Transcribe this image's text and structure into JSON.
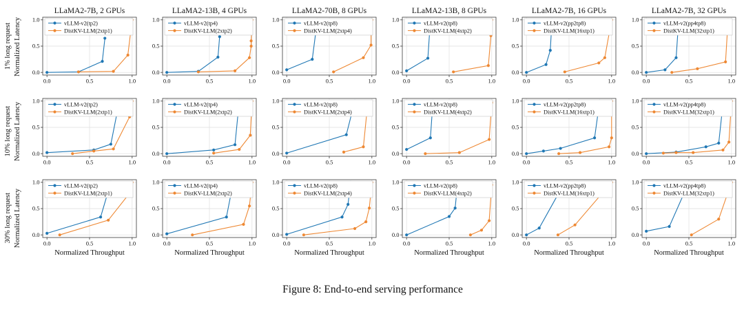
{
  "caption": "Figure 8: End-to-end serving performance",
  "x_axis_label": "Normalized Throughput",
  "y_axis_label": "Normalized Latency",
  "row_labels": [
    "1% long request",
    "10% long request",
    "30% long request"
  ],
  "col_titles": [
    "LLaMA2-7B, 2 GPUs",
    "LLaMA2-13B, 4 GPUs",
    "LLaMA2-70B, 8 GPUs",
    "LLaMA2-13B, 8 GPUs",
    "LLaMA2-7B, 16 GPUs",
    "LLaMA2-7B, 32 GPUs"
  ],
  "colors": {
    "vllm_blue": "#1f77b4",
    "distkv_orange": "#ee8833",
    "grid": "#dedede",
    "spine": "#3a3a3a",
    "legend_border": "#cccccc"
  },
  "axes": {
    "xlim": [
      0,
      1
    ],
    "ylim": [
      0,
      1
    ],
    "xticks": [
      "0.0",
      "0.5",
      "1.0"
    ],
    "yticks": [
      "0.0",
      "0.5",
      "1.0"
    ]
  },
  "chart_data": [
    {
      "type": "line",
      "row": 0,
      "col": 0,
      "title": "LLaMA2-7B, 2 GPUs",
      "xlim": [
        0,
        1
      ],
      "ylim": [
        0,
        1
      ],
      "series": [
        {
          "name": "vLLM-v2(tp2)",
          "color": "#1f77b4",
          "points": [
            [
              0,
              0
            ],
            [
              0.37,
              0.01
            ],
            [
              0.65,
              0.21
            ],
            [
              0.68,
              0.65
            ]
          ]
        },
        {
          "name": "DistKV-LLM(2xtp1)",
          "color": "#ee8833",
          "points": [
            [
              0.37,
              0.01
            ],
            [
              0.78,
              0.02
            ],
            [
              0.95,
              0.33
            ],
            [
              1.0,
              1.0
            ]
          ]
        }
      ]
    },
    {
      "type": "line",
      "row": 0,
      "col": 1,
      "title": "LLaMA2-13B, 4 GPUs",
      "xlim": [
        0,
        1
      ],
      "ylim": [
        0,
        1
      ],
      "series": [
        {
          "name": "vLLM-v2(tp4)",
          "color": "#1f77b4",
          "points": [
            [
              0,
              0
            ],
            [
              0.37,
              0.02
            ],
            [
              0.6,
              0.29
            ],
            [
              0.62,
              0.68
            ]
          ]
        },
        {
          "name": "DistKV-LLM(2xtp2)",
          "color": "#ee8833",
          "points": [
            [
              0.37,
              0.01
            ],
            [
              0.8,
              0.03
            ],
            [
              0.97,
              0.28
            ],
            [
              0.99,
              0.5
            ],
            [
              0.99,
              0.6
            ],
            [
              1.0,
              1.0
            ]
          ]
        }
      ]
    },
    {
      "type": "line",
      "row": 0,
      "col": 2,
      "title": "LLaMA2-70B, 8 GPUs",
      "xlim": [
        0,
        1
      ],
      "ylim": [
        0,
        1
      ],
      "series": [
        {
          "name": "vLLM-v2(tp8)",
          "color": "#1f77b4",
          "points": [
            [
              0,
              0.05
            ],
            [
              0.3,
              0.25
            ],
            [
              0.36,
              1.0
            ]
          ]
        },
        {
          "name": "DistKV-LLM(2xtp4)",
          "color": "#ee8833",
          "points": [
            [
              0.55,
              0.01
            ],
            [
              0.9,
              0.28
            ],
            [
              0.99,
              0.52
            ],
            [
              0.99,
              0.85
            ],
            [
              1.0,
              1.0
            ]
          ]
        }
      ]
    },
    {
      "type": "line",
      "row": 0,
      "col": 3,
      "title": "LLaMA2-13B, 8 GPUs",
      "xlim": [
        0,
        1
      ],
      "ylim": [
        0,
        1
      ],
      "series": [
        {
          "name": "vLLM-v2(tp8)",
          "color": "#1f77b4",
          "points": [
            [
              0,
              0.03
            ],
            [
              0.25,
              0.27
            ],
            [
              0.28,
              1.0
            ]
          ]
        },
        {
          "name": "DistKV-LLM(4xtp2)",
          "color": "#ee8833",
          "points": [
            [
              0.55,
              0.01
            ],
            [
              0.96,
              0.13
            ],
            [
              0.99,
              0.7
            ],
            [
              1.0,
              1.0
            ]
          ]
        }
      ]
    },
    {
      "type": "line",
      "row": 0,
      "col": 4,
      "title": "LLaMA2-7B, 16 GPUs",
      "xlim": [
        0,
        1
      ],
      "ylim": [
        0,
        1
      ],
      "series": [
        {
          "name": "vLLM-v2(pp2tp8)",
          "color": "#1f77b4",
          "points": [
            [
              0,
              0
            ],
            [
              0.23,
              0.15
            ],
            [
              0.28,
              0.42
            ],
            [
              0.3,
              1.0
            ]
          ]
        },
        {
          "name": "DistKV-LLM(16xtp1)",
          "color": "#ee8833",
          "points": [
            [
              0.45,
              0.01
            ],
            [
              0.85,
              0.18
            ],
            [
              0.92,
              0.28
            ],
            [
              1.0,
              1.0
            ]
          ]
        }
      ]
    },
    {
      "type": "line",
      "row": 0,
      "col": 5,
      "title": "LLaMA2-7B, 32 GPUs",
      "xlim": [
        0,
        1
      ],
      "ylim": [
        0,
        1
      ],
      "series": [
        {
          "name": "vLLM-v2(pp4tp8)",
          "color": "#1f77b4",
          "points": [
            [
              0,
              0
            ],
            [
              0.22,
              0.05
            ],
            [
              0.35,
              0.28
            ],
            [
              0.38,
              1.0
            ]
          ]
        },
        {
          "name": "DistKV-LLM(32xtp1)",
          "color": "#ee8833",
          "points": [
            [
              0.3,
              0.0
            ],
            [
              0.6,
              0.07
            ],
            [
              0.93,
              0.2
            ],
            [
              0.96,
              1.0
            ]
          ]
        }
      ]
    },
    {
      "type": "line",
      "row": 1,
      "col": 0,
      "title": "",
      "xlim": [
        0,
        1
      ],
      "ylim": [
        0,
        1
      ],
      "series": [
        {
          "name": "vLLM-v2(tp2)",
          "color": "#1f77b4",
          "points": [
            [
              0,
              0.02
            ],
            [
              0.55,
              0.07
            ],
            [
              0.75,
              0.18
            ],
            [
              0.85,
              1.0
            ]
          ]
        },
        {
          "name": "DistKV-LLM(2xtp1)",
          "color": "#ee8833",
          "points": [
            [
              0.3,
              0.0
            ],
            [
              0.55,
              0.05
            ],
            [
              0.78,
              0.09
            ],
            [
              0.97,
              0.7
            ],
            [
              1.0,
              1.0
            ]
          ]
        }
      ]
    },
    {
      "type": "line",
      "row": 1,
      "col": 1,
      "title": "",
      "xlim": [
        0,
        1
      ],
      "ylim": [
        0,
        1
      ],
      "series": [
        {
          "name": "vLLM-v2(tp4)",
          "color": "#1f77b4",
          "points": [
            [
              0,
              0
            ],
            [
              0.55,
              0.07
            ],
            [
              0.8,
              0.17
            ],
            [
              0.85,
              1.0
            ]
          ]
        },
        {
          "name": "DistKV-LLM(2xtp2)",
          "color": "#ee8833",
          "points": [
            [
              0.55,
              0.01
            ],
            [
              0.85,
              0.08
            ],
            [
              0.98,
              0.35
            ],
            [
              1.0,
              1.0
            ]
          ]
        }
      ]
    },
    {
      "type": "line",
      "row": 1,
      "col": 2,
      "title": "",
      "xlim": [
        0,
        1
      ],
      "ylim": [
        0,
        1
      ],
      "series": [
        {
          "name": "vLLM-v2(tp8)",
          "color": "#1f77b4",
          "points": [
            [
              0,
              0.01
            ],
            [
              0.7,
              0.36
            ],
            [
              0.8,
              1.0
            ]
          ]
        },
        {
          "name": "DistKV-LLM(2xtp4)",
          "color": "#ee8833",
          "points": [
            [
              0.67,
              0.03
            ],
            [
              0.9,
              0.13
            ],
            [
              0.95,
              0.93
            ]
          ]
        }
      ]
    },
    {
      "type": "line",
      "row": 1,
      "col": 3,
      "title": "",
      "xlim": [
        0,
        1
      ],
      "ylim": [
        0,
        1
      ],
      "series": [
        {
          "name": "vLLM-v2(tp8)",
          "color": "#1f77b4",
          "points": [
            [
              0,
              0.08
            ],
            [
              0.28,
              0.3
            ],
            [
              0.31,
              1.0
            ]
          ]
        },
        {
          "name": "DistKV-LLM(4xtp2)",
          "color": "#ee8833",
          "points": [
            [
              0.22,
              0.0
            ],
            [
              0.62,
              0.02
            ],
            [
              0.97,
              0.27
            ],
            [
              1.0,
              0.97
            ]
          ]
        }
      ]
    },
    {
      "type": "line",
      "row": 1,
      "col": 4,
      "title": "",
      "xlim": [
        0,
        1
      ],
      "ylim": [
        0,
        1
      ],
      "series": [
        {
          "name": "vLLM-v2(pp2tp8)",
          "color": "#1f77b4",
          "points": [
            [
              0,
              0
            ],
            [
              0.2,
              0.05
            ],
            [
              0.4,
              0.1
            ],
            [
              0.8,
              0.3
            ],
            [
              0.86,
              1.0
            ]
          ]
        },
        {
          "name": "DistKV-LLM(16xtp1)",
          "color": "#ee8833",
          "points": [
            [
              0.38,
              0.0
            ],
            [
              0.63,
              0.02
            ],
            [
              0.97,
              0.13
            ],
            [
              1.0,
              0.3
            ],
            [
              1.0,
              1.0
            ]
          ]
        }
      ]
    },
    {
      "type": "line",
      "row": 1,
      "col": 5,
      "title": "",
      "xlim": [
        0,
        1
      ],
      "ylim": [
        0,
        1
      ],
      "series": [
        {
          "name": "vLLM-v2(pp4tp8)",
          "color": "#1f77b4",
          "points": [
            [
              0,
              0
            ],
            [
              0.35,
              0.03
            ],
            [
              0.7,
              0.13
            ],
            [
              0.85,
              0.2
            ],
            [
              0.9,
              0.95
            ]
          ]
        },
        {
          "name": "DistKV-LLM(32xtp1)",
          "color": "#ee8833",
          "points": [
            [
              0.2,
              0.01
            ],
            [
              0.35,
              0.02
            ],
            [
              0.55,
              0.02
            ],
            [
              0.9,
              0.07
            ],
            [
              0.97,
              0.22
            ],
            [
              1.0,
              1.0
            ]
          ]
        }
      ]
    },
    {
      "type": "line",
      "row": 2,
      "col": 0,
      "title": "",
      "xlim": [
        0,
        1
      ],
      "ylim": [
        0,
        1
      ],
      "series": [
        {
          "name": "vLLM-v2(tp2)",
          "color": "#1f77b4",
          "points": [
            [
              0,
              0.03
            ],
            [
              0.63,
              0.34
            ],
            [
              0.75,
              1.0
            ]
          ]
        },
        {
          "name": "DistKV-LLM(2xtp1)",
          "color": "#ee8833",
          "points": [
            [
              0.15,
              0.0
            ],
            [
              0.72,
              0.28
            ],
            [
              0.95,
              0.75
            ],
            [
              1.0,
              1.0
            ]
          ]
        }
      ]
    },
    {
      "type": "line",
      "row": 2,
      "col": 1,
      "title": "",
      "xlim": [
        0,
        1
      ],
      "ylim": [
        0,
        1
      ],
      "series": [
        {
          "name": "vLLM-v2(tp4)",
          "color": "#1f77b4",
          "points": [
            [
              0,
              0.02
            ],
            [
              0.7,
              0.34
            ],
            [
              0.78,
              1.0
            ]
          ]
        },
        {
          "name": "DistKV-LLM(2xtp2)",
          "color": "#ee8833",
          "points": [
            [
              0.3,
              0.0
            ],
            [
              0.9,
              0.2
            ],
            [
              0.97,
              0.55
            ],
            [
              1.0,
              1.0
            ]
          ]
        }
      ]
    },
    {
      "type": "line",
      "row": 2,
      "col": 2,
      "title": "",
      "xlim": [
        0,
        1
      ],
      "ylim": [
        0,
        1
      ],
      "series": [
        {
          "name": "vLLM-v2(tp8)",
          "color": "#1f77b4",
          "points": [
            [
              0,
              0.01
            ],
            [
              0.65,
              0.34
            ],
            [
              0.72,
              0.58
            ],
            [
              0.75,
              1.0
            ]
          ]
        },
        {
          "name": "DistKV-LLM(2xtp4)",
          "color": "#ee8833",
          "points": [
            [
              0.2,
              0.0
            ],
            [
              0.8,
              0.12
            ],
            [
              0.93,
              0.25
            ],
            [
              0.97,
              0.51
            ],
            [
              1.0,
              1.0
            ]
          ]
        }
      ]
    },
    {
      "type": "line",
      "row": 2,
      "col": 3,
      "title": "",
      "xlim": [
        0,
        1
      ],
      "ylim": [
        0,
        1
      ],
      "series": [
        {
          "name": "vLLM-v2(tp8)",
          "color": "#1f77b4",
          "points": [
            [
              0,
              0
            ],
            [
              0.5,
              0.35
            ],
            [
              0.57,
              0.51
            ],
            [
              0.6,
              1.0
            ]
          ]
        },
        {
          "name": "DistKV-LLM(4xtp2)",
          "color": "#ee8833",
          "points": [
            [
              0.75,
              0.0
            ],
            [
              0.88,
              0.09
            ],
            [
              0.97,
              0.27
            ],
            [
              1.0,
              0.95
            ]
          ]
        }
      ]
    },
    {
      "type": "line",
      "row": 2,
      "col": 4,
      "title": "",
      "xlim": [
        0,
        1
      ],
      "ylim": [
        0,
        1
      ],
      "series": [
        {
          "name": "vLLM-v2(pp2tp8)",
          "color": "#1f77b4",
          "points": [
            [
              0,
              0
            ],
            [
              0.15,
              0.13
            ],
            [
              0.45,
              1.0
            ]
          ]
        },
        {
          "name": "DistKV-LLM(16xtp1)",
          "color": "#ee8833",
          "points": [
            [
              0.37,
              0.0
            ],
            [
              0.57,
              0.19
            ],
            [
              1.0,
              1.0
            ]
          ]
        }
      ]
    },
    {
      "type": "line",
      "row": 2,
      "col": 5,
      "title": "",
      "xlim": [
        0,
        1
      ],
      "ylim": [
        0,
        1
      ],
      "series": [
        {
          "name": "vLLM-v2(pp4tp8)",
          "color": "#1f77b4",
          "points": [
            [
              0,
              0.07
            ],
            [
              0.27,
              0.16
            ],
            [
              0.5,
              1.0
            ]
          ]
        },
        {
          "name": "DistKV-LLM(32xtp1)",
          "color": "#ee8833",
          "points": [
            [
              0.53,
              0.0
            ],
            [
              0.85,
              0.3
            ],
            [
              1.0,
              1.0
            ]
          ]
        }
      ]
    }
  ]
}
